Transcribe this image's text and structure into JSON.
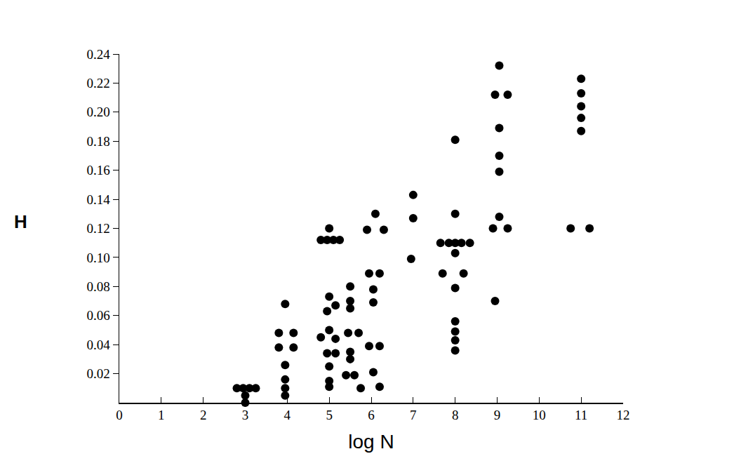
{
  "chart_data": {
    "type": "scatter",
    "x_label": "log N",
    "y_label": "H",
    "color": "#000000",
    "marker": "circle",
    "grid": false,
    "xlim": [
      0,
      12
    ],
    "xticks": [
      0,
      1,
      2,
      3,
      4,
      5,
      6,
      7,
      8,
      9,
      10,
      11,
      12
    ],
    "ylim": [
      0,
      0.24
    ],
    "yticks": [
      0.02,
      0.04,
      0.06,
      0.08,
      {
        "value": 0.1,
        "label": "0.10"
      },
      0.12,
      0.14,
      0.16,
      0.18,
      {
        "value": 0.2,
        "label": "0.20"
      },
      0.22,
      0.24
    ],
    "x": [
      2.8,
      2.95,
      3.1,
      3.25,
      3.0,
      3.0,
      3.95,
      3.8,
      4.15,
      3.8,
      4.15,
      3.95,
      3.95,
      3.95,
      3.95,
      4.8,
      4.95,
      5.1,
      5.25,
      5.0,
      5.0,
      5.15,
      4.95,
      5.0,
      4.8,
      5.15,
      4.95,
      5.15,
      5.0,
      5.0,
      5.0,
      5.5,
      5.5,
      5.5,
      5.45,
      5.7,
      5.5,
      5.5,
      5.4,
      5.6,
      5.75,
      6.1,
      5.9,
      6.3,
      5.95,
      6.2,
      6.05,
      6.05,
      5.95,
      6.2,
      6.05,
      6.2,
      7.0,
      7.0,
      6.95,
      8.0,
      8.0,
      7.65,
      7.85,
      8.0,
      8.15,
      8.35,
      8.0,
      7.7,
      8.2,
      8.0,
      8.0,
      8.0,
      8.0,
      8.0,
      9.05,
      8.95,
      9.25,
      9.05,
      9.05,
      9.05,
      9.05,
      8.9,
      9.25,
      8.95,
      11.0,
      11.0,
      11.0,
      11.0,
      11.0,
      10.75,
      11.2
    ],
    "values": [
      0.01,
      0.01,
      0.01,
      0.01,
      0.005,
      0,
      0.068,
      0.048,
      0.048,
      0.038,
      0.038,
      0.026,
      0.016,
      0.01,
      0.005,
      0.112,
      0.112,
      0.112,
      0.112,
      0.12,
      0.073,
      0.067,
      0.063,
      0.05,
      0.045,
      0.044,
      0.034,
      0.034,
      0.025,
      0.015,
      0.011,
      0.08,
      0.07,
      0.065,
      0.048,
      0.048,
      0.035,
      0.03,
      0.019,
      0.019,
      0.01,
      0.13,
      0.119,
      0.119,
      0.089,
      0.089,
      0.078,
      0.069,
      0.039,
      0.039,
      0.021,
      0.011,
      0.143,
      0.127,
      0.099,
      0.181,
      0.13,
      0.11,
      0.11,
      0.11,
      0.11,
      0.11,
      0.103,
      0.089,
      0.089,
      0.079,
      0.056,
      0.049,
      0.043,
      0.036,
      0.232,
      0.212,
      0.212,
      0.189,
      0.17,
      0.159,
      0.128,
      0.12,
      0.12,
      0.07,
      0.223,
      0.213,
      0.204,
      0.196,
      0.187,
      0.12,
      0.12
    ]
  }
}
